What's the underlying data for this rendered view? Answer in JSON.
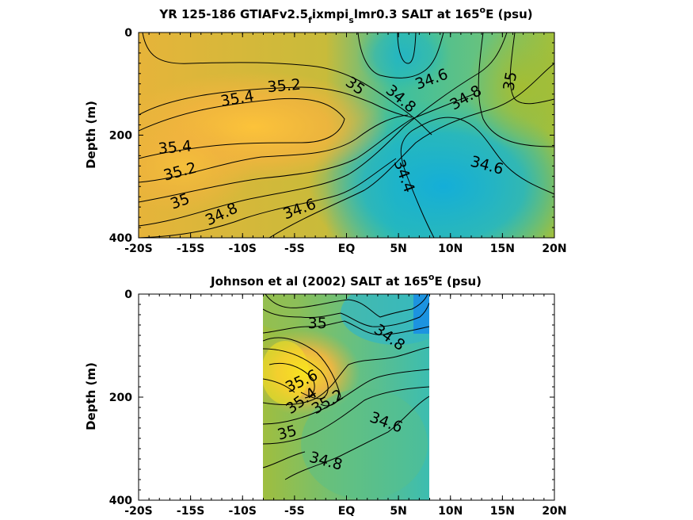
{
  "chart_data": [
    {
      "type": "heatmap",
      "title_main": "YR 125-186 GTIAFv2.5",
      "title_sub1": "f",
      "title_mid": "ixmpi",
      "title_sub2": "s",
      "title_tail": "lmr0.3 SALT at 165",
      "title_sup": "o",
      "title_end": "E (psu)",
      "ylabel": "Depth (m)",
      "x_ticks": [
        "-20S",
        "-15S",
        "-10S",
        "-5S",
        "EQ",
        "5N",
        "10N",
        "15N",
        "20N"
      ],
      "y_ticks": [
        "0",
        "200",
        "400"
      ],
      "xlim": [
        -20,
        20
      ],
      "ylim": [
        0,
        400
      ],
      "data_extent": [
        -20,
        20
      ],
      "contour_labels": [
        {
          "text": "35.2",
          "lat": -6,
          "depth": 105,
          "angle": -5
        },
        {
          "text": "35.4",
          "lat": -10.5,
          "depth": 130,
          "angle": -10
        },
        {
          "text": "35",
          "lat": 0.8,
          "depth": 105,
          "angle": 35
        },
        {
          "text": "34.6",
          "lat": 8.2,
          "depth": 92,
          "angle": -20
        },
        {
          "text": "34.8",
          "lat": 5.2,
          "depth": 130,
          "angle": 40
        },
        {
          "text": "34.8",
          "lat": 11.5,
          "depth": 128,
          "angle": -30
        },
        {
          "text": "35",
          "lat": 15.8,
          "depth": 95,
          "angle": -80
        },
        {
          "text": "35.4",
          "lat": -16.5,
          "depth": 225,
          "angle": -5
        },
        {
          "text": "35.2",
          "lat": -16,
          "depth": 272,
          "angle": -15
        },
        {
          "text": "35",
          "lat": -16,
          "depth": 330,
          "angle": -20
        },
        {
          "text": "34.8",
          "lat": -12,
          "depth": 355,
          "angle": -25
        },
        {
          "text": "34.6",
          "lat": -4.5,
          "depth": 345,
          "angle": -20
        },
        {
          "text": "34.4",
          "lat": 5.5,
          "depth": 280,
          "angle": 70
        },
        {
          "text": "34.6",
          "lat": 13.5,
          "depth": 260,
          "angle": 15
        }
      ]
    },
    {
      "type": "heatmap",
      "title_main": "Johnson et al (2002) SALT at 165",
      "title_sup": "o",
      "title_end": "E (psu)",
      "ylabel": "Depth (m)",
      "x_ticks": [
        "-20S",
        "-15S",
        "-10S",
        "-5S",
        "EQ",
        "5N",
        "10N",
        "15N",
        "20N"
      ],
      "y_ticks": [
        "0",
        "200",
        "400"
      ],
      "xlim": [
        -20,
        20
      ],
      "ylim": [
        0,
        400
      ],
      "data_extent": [
        -8,
        8
      ],
      "contour_labels": [
        {
          "text": "35",
          "lat": -2.8,
          "depth": 58,
          "angle": 0
        },
        {
          "text": "34.8",
          "lat": 4.1,
          "depth": 85,
          "angle": 35
        },
        {
          "text": "35.6",
          "lat": -4.3,
          "depth": 170,
          "angle": -25
        },
        {
          "text": "35.4",
          "lat": -4.3,
          "depth": 208,
          "angle": -35
        },
        {
          "text": "35.2",
          "lat": -1.8,
          "depth": 210,
          "angle": -30
        },
        {
          "text": "34.6",
          "lat": 3.8,
          "depth": 250,
          "angle": 20
        },
        {
          "text": "35",
          "lat": -5.7,
          "depth": 270,
          "angle": -15
        },
        {
          "text": "34.8",
          "lat": -2,
          "depth": 325,
          "angle": 15
        }
      ]
    }
  ]
}
